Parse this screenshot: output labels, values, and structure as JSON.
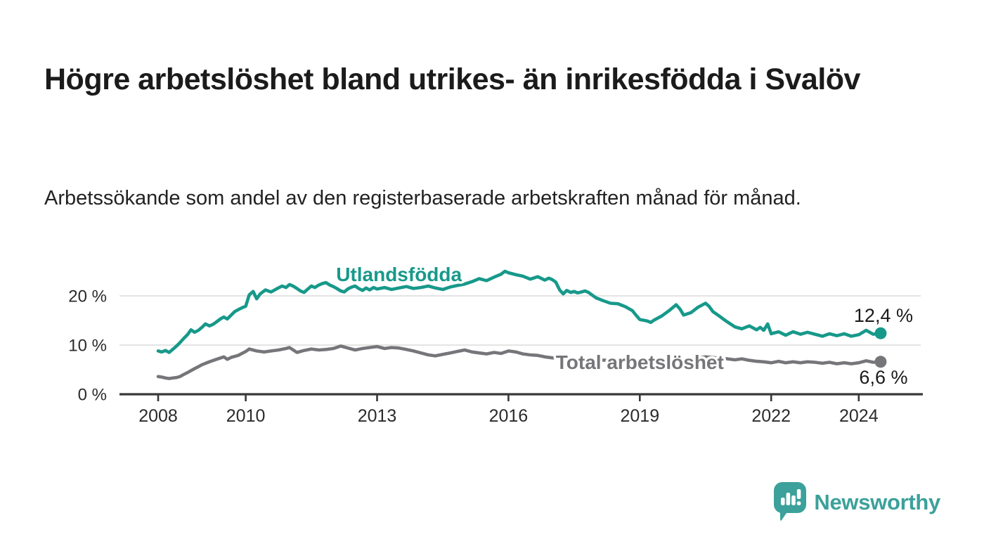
{
  "header": {
    "title": "Högre arbetslöshet bland utrikes- än inrikesfödda i Svalöv",
    "subtitle": "Arbetssökande som andel av den registerbaserade arbetskraften månad för månad."
  },
  "footer": {
    "brand": "Newsworthy",
    "brand_color": "#3ba19a"
  },
  "chart_data": {
    "type": "line",
    "title": "",
    "xlabel": "",
    "ylabel": "",
    "unit": "%",
    "grid": "horizontal",
    "x_range": [
      2007.1,
      2025.5
    ],
    "y_range": [
      0,
      26
    ],
    "x_ticks": [
      2008,
      2010,
      2013,
      2016,
      2019,
      2022,
      2024
    ],
    "y_ticks": [
      {
        "value": 0,
        "label": "0 %"
      },
      {
        "value": 10,
        "label": "10 %"
      },
      {
        "value": 20,
        "label": "20 %"
      }
    ],
    "series": [
      {
        "name": "Utlandsfödda",
        "color": "#17998a",
        "end_label": "12,4 %",
        "end_value": 12.4,
        "label_anchor": {
          "x": 2013.5,
          "y": 24.3
        },
        "points": [
          [
            2008.0,
            8.8
          ],
          [
            2008.08,
            8.6
          ],
          [
            2008.17,
            8.9
          ],
          [
            2008.25,
            8.5
          ],
          [
            2008.33,
            9.1
          ],
          [
            2008.42,
            9.8
          ],
          [
            2008.5,
            10.5
          ],
          [
            2008.58,
            11.3
          ],
          [
            2008.67,
            12.1
          ],
          [
            2008.75,
            13.1
          ],
          [
            2008.83,
            12.6
          ],
          [
            2008.92,
            13.0
          ],
          [
            2009.0,
            13.6
          ],
          [
            2009.08,
            14.3
          ],
          [
            2009.17,
            13.9
          ],
          [
            2009.25,
            14.2
          ],
          [
            2009.33,
            14.7
          ],
          [
            2009.42,
            15.3
          ],
          [
            2009.5,
            15.7
          ],
          [
            2009.58,
            15.3
          ],
          [
            2009.67,
            16.1
          ],
          [
            2009.75,
            16.8
          ],
          [
            2009.83,
            17.2
          ],
          [
            2009.92,
            17.6
          ],
          [
            2010.0,
            17.9
          ],
          [
            2010.08,
            20.2
          ],
          [
            2010.17,
            20.9
          ],
          [
            2010.25,
            19.4
          ],
          [
            2010.33,
            20.4
          ],
          [
            2010.45,
            21.2
          ],
          [
            2010.58,
            20.8
          ],
          [
            2010.7,
            21.4
          ],
          [
            2010.83,
            22.0
          ],
          [
            2010.92,
            21.7
          ],
          [
            2011.0,
            22.3
          ],
          [
            2011.08,
            22.0
          ],
          [
            2011.17,
            21.5
          ],
          [
            2011.25,
            21.0
          ],
          [
            2011.33,
            20.7
          ],
          [
            2011.42,
            21.4
          ],
          [
            2011.5,
            22.0
          ],
          [
            2011.58,
            21.7
          ],
          [
            2011.67,
            22.2
          ],
          [
            2011.75,
            22.5
          ],
          [
            2011.83,
            22.7
          ],
          [
            2011.92,
            22.2
          ],
          [
            2012.0,
            21.9
          ],
          [
            2012.08,
            21.5
          ],
          [
            2012.17,
            21.0
          ],
          [
            2012.25,
            20.8
          ],
          [
            2012.33,
            21.4
          ],
          [
            2012.42,
            21.8
          ],
          [
            2012.5,
            22.0
          ],
          [
            2012.58,
            21.5
          ],
          [
            2012.67,
            21.1
          ],
          [
            2012.75,
            21.6
          ],
          [
            2012.83,
            21.2
          ],
          [
            2012.92,
            21.7
          ],
          [
            2013.0,
            21.4
          ],
          [
            2013.17,
            21.7
          ],
          [
            2013.33,
            21.3
          ],
          [
            2013.5,
            21.6
          ],
          [
            2013.67,
            21.9
          ],
          [
            2013.83,
            21.5
          ],
          [
            2014.0,
            21.7
          ],
          [
            2014.17,
            22.0
          ],
          [
            2014.33,
            21.6
          ],
          [
            2014.5,
            21.3
          ],
          [
            2014.67,
            21.8
          ],
          [
            2014.83,
            22.1
          ],
          [
            2015.0,
            22.4
          ],
          [
            2015.17,
            22.9
          ],
          [
            2015.33,
            23.5
          ],
          [
            2015.5,
            23.1
          ],
          [
            2015.67,
            23.8
          ],
          [
            2015.83,
            24.4
          ],
          [
            2015.92,
            25.0
          ],
          [
            2016.0,
            24.7
          ],
          [
            2016.17,
            24.3
          ],
          [
            2016.33,
            24.0
          ],
          [
            2016.5,
            23.4
          ],
          [
            2016.67,
            23.9
          ],
          [
            2016.83,
            23.2
          ],
          [
            2016.92,
            23.6
          ],
          [
            2017.0,
            23.3
          ],
          [
            2017.08,
            22.8
          ],
          [
            2017.17,
            21.2
          ],
          [
            2017.25,
            20.4
          ],
          [
            2017.33,
            21.1
          ],
          [
            2017.42,
            20.7
          ],
          [
            2017.5,
            20.9
          ],
          [
            2017.58,
            20.6
          ],
          [
            2017.67,
            20.8
          ],
          [
            2017.75,
            21.0
          ],
          [
            2017.83,
            20.7
          ],
          [
            2017.92,
            20.1
          ],
          [
            2018.0,
            19.6
          ],
          [
            2018.17,
            19.0
          ],
          [
            2018.33,
            18.5
          ],
          [
            2018.5,
            18.4
          ],
          [
            2018.67,
            17.8
          ],
          [
            2018.83,
            17.0
          ],
          [
            2018.92,
            16.0
          ],
          [
            2019.0,
            15.2
          ],
          [
            2019.17,
            14.9
          ],
          [
            2019.25,
            14.6
          ],
          [
            2019.33,
            15.1
          ],
          [
            2019.5,
            15.9
          ],
          [
            2019.67,
            17.0
          ],
          [
            2019.83,
            18.2
          ],
          [
            2019.92,
            17.3
          ],
          [
            2020.0,
            16.1
          ],
          [
            2020.17,
            16.6
          ],
          [
            2020.33,
            17.7
          ],
          [
            2020.5,
            18.5
          ],
          [
            2020.58,
            17.9
          ],
          [
            2020.67,
            16.8
          ],
          [
            2020.83,
            15.8
          ],
          [
            2020.92,
            15.2
          ],
          [
            2021.0,
            14.7
          ],
          [
            2021.17,
            13.7
          ],
          [
            2021.33,
            13.3
          ],
          [
            2021.5,
            13.9
          ],
          [
            2021.67,
            13.1
          ],
          [
            2021.75,
            13.6
          ],
          [
            2021.83,
            13.0
          ],
          [
            2021.92,
            14.3
          ],
          [
            2022.0,
            12.3
          ],
          [
            2022.17,
            12.7
          ],
          [
            2022.33,
            12.0
          ],
          [
            2022.5,
            12.7
          ],
          [
            2022.67,
            12.2
          ],
          [
            2022.83,
            12.6
          ],
          [
            2023.0,
            12.2
          ],
          [
            2023.17,
            11.8
          ],
          [
            2023.33,
            12.3
          ],
          [
            2023.5,
            11.9
          ],
          [
            2023.67,
            12.3
          ],
          [
            2023.83,
            11.8
          ],
          [
            2024.0,
            12.1
          ],
          [
            2024.17,
            13.0
          ],
          [
            2024.33,
            12.2
          ],
          [
            2024.5,
            12.4
          ]
        ]
      },
      {
        "name": "Total arbetslöshet",
        "color": "#76767a",
        "end_label": "6,6 %",
        "end_value": 6.6,
        "label_anchor": {
          "x": 2019.0,
          "y": 6.4
        },
        "points": [
          [
            2008.0,
            3.6
          ],
          [
            2008.08,
            3.5
          ],
          [
            2008.17,
            3.3
          ],
          [
            2008.25,
            3.2
          ],
          [
            2008.33,
            3.3
          ],
          [
            2008.42,
            3.4
          ],
          [
            2008.5,
            3.6
          ],
          [
            2008.58,
            4.0
          ],
          [
            2008.67,
            4.4
          ],
          [
            2008.75,
            4.8
          ],
          [
            2008.83,
            5.2
          ],
          [
            2008.92,
            5.6
          ],
          [
            2009.0,
            6.0
          ],
          [
            2009.17,
            6.6
          ],
          [
            2009.33,
            7.1
          ],
          [
            2009.5,
            7.6
          ],
          [
            2009.58,
            7.1
          ],
          [
            2009.67,
            7.5
          ],
          [
            2009.83,
            7.9
          ],
          [
            2010.0,
            8.7
          ],
          [
            2010.08,
            9.2
          ],
          [
            2010.25,
            8.8
          ],
          [
            2010.42,
            8.6
          ],
          [
            2010.58,
            8.8
          ],
          [
            2010.75,
            9.0
          ],
          [
            2010.92,
            9.3
          ],
          [
            2011.0,
            9.5
          ],
          [
            2011.17,
            8.5
          ],
          [
            2011.33,
            8.9
          ],
          [
            2011.5,
            9.2
          ],
          [
            2011.67,
            9.0
          ],
          [
            2011.83,
            9.1
          ],
          [
            2012.0,
            9.3
          ],
          [
            2012.17,
            9.8
          ],
          [
            2012.33,
            9.4
          ],
          [
            2012.5,
            9.0
          ],
          [
            2012.67,
            9.3
          ],
          [
            2012.83,
            9.5
          ],
          [
            2013.0,
            9.7
          ],
          [
            2013.17,
            9.3
          ],
          [
            2013.33,
            9.5
          ],
          [
            2013.5,
            9.4
          ],
          [
            2013.67,
            9.1
          ],
          [
            2013.83,
            8.8
          ],
          [
            2014.0,
            8.4
          ],
          [
            2014.17,
            8.0
          ],
          [
            2014.33,
            7.8
          ],
          [
            2014.5,
            8.1
          ],
          [
            2014.67,
            8.4
          ],
          [
            2014.83,
            8.7
          ],
          [
            2015.0,
            9.0
          ],
          [
            2015.17,
            8.6
          ],
          [
            2015.33,
            8.4
          ],
          [
            2015.5,
            8.2
          ],
          [
            2015.67,
            8.5
          ],
          [
            2015.83,
            8.3
          ],
          [
            2016.0,
            8.8
          ],
          [
            2016.17,
            8.6
          ],
          [
            2016.33,
            8.2
          ],
          [
            2016.5,
            8.0
          ],
          [
            2016.67,
            7.9
          ],
          [
            2016.83,
            7.6
          ],
          [
            2017.0,
            7.4
          ],
          [
            2017.25,
            7.3
          ],
          [
            2017.5,
            7.1
          ],
          [
            2017.75,
            7.0
          ],
          [
            2018.0,
            7.0
          ],
          [
            2018.25,
            6.9
          ],
          [
            2018.5,
            6.8
          ],
          [
            2018.75,
            6.6
          ],
          [
            2019.0,
            6.5
          ],
          [
            2019.25,
            6.5
          ],
          [
            2019.5,
            6.6
          ],
          [
            2019.75,
            6.7
          ],
          [
            2020.0,
            6.8
          ],
          [
            2020.25,
            7.3
          ],
          [
            2020.5,
            7.6
          ],
          [
            2020.75,
            7.4
          ],
          [
            2021.0,
            7.2
          ],
          [
            2021.17,
            7.0
          ],
          [
            2021.33,
            7.2
          ],
          [
            2021.5,
            6.9
          ],
          [
            2021.67,
            6.7
          ],
          [
            2021.83,
            6.6
          ],
          [
            2022.0,
            6.4
          ],
          [
            2022.17,
            6.7
          ],
          [
            2022.33,
            6.4
          ],
          [
            2022.5,
            6.6
          ],
          [
            2022.67,
            6.4
          ],
          [
            2022.83,
            6.6
          ],
          [
            2023.0,
            6.5
          ],
          [
            2023.17,
            6.3
          ],
          [
            2023.33,
            6.5
          ],
          [
            2023.5,
            6.2
          ],
          [
            2023.67,
            6.4
          ],
          [
            2023.83,
            6.2
          ],
          [
            2024.0,
            6.4
          ],
          [
            2024.17,
            6.8
          ],
          [
            2024.33,
            6.5
          ],
          [
            2024.5,
            6.6
          ]
        ]
      }
    ],
    "style": {
      "grid_color": "#dcdcdc",
      "axis_color": "#383838",
      "tick_label_color": "#2b2b2b",
      "end_label_color": "#1a1a1a"
    }
  }
}
